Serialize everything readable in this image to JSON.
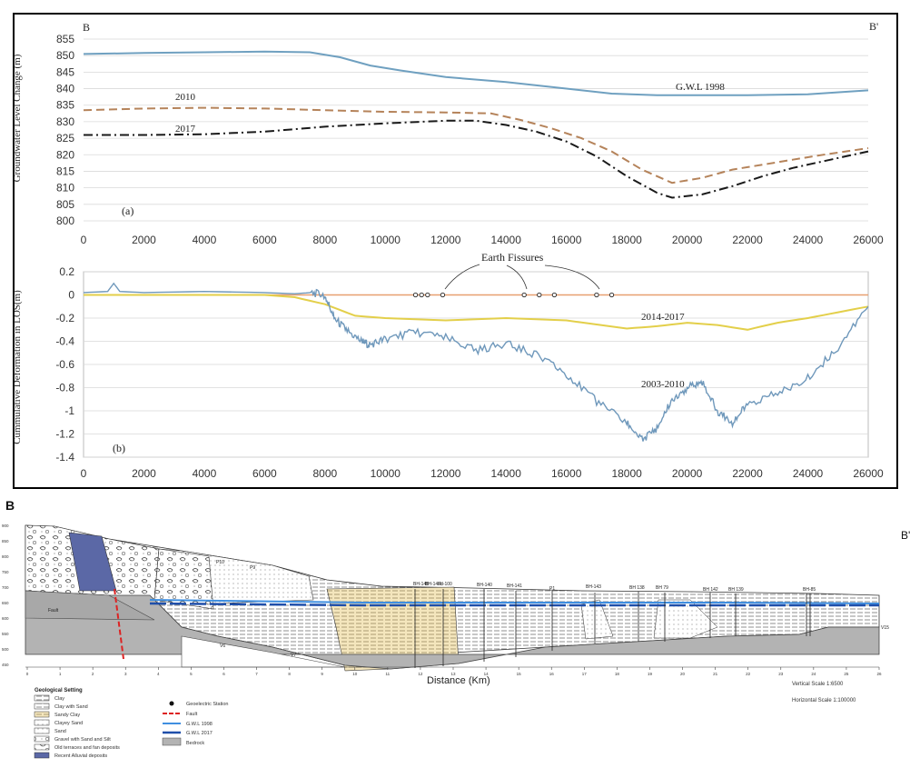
{
  "chart_data": [
    {
      "type": "line",
      "panel_label": "(a)",
      "corner_left": "B",
      "corner_right": "B'",
      "ylabel": "Groundwater Level Change (m)",
      "ylim": [
        800,
        855
      ],
      "yticks": [
        "800",
        "805",
        "810",
        "815",
        "820",
        "825",
        "830",
        "835",
        "840",
        "845",
        "850",
        "855"
      ],
      "xlim": [
        0,
        26000
      ],
      "xticks": [
        "0",
        "2000",
        "4000",
        "6000",
        "8000",
        "10000",
        "12000",
        "14000",
        "16000",
        "18000",
        "20000",
        "22000",
        "24000",
        "26000"
      ],
      "grid": true,
      "series": [
        {
          "name": "G.W.L 1998",
          "color": "#6fa0c0",
          "style": "solid",
          "x": [
            0,
            2000,
            4000,
            6000,
            7500,
            8500,
            9500,
            10500,
            12000,
            14000,
            16000,
            17500,
            19000,
            20500,
            22000,
            24000,
            26000
          ],
          "y": [
            850.5,
            850.8,
            851,
            851.2,
            851,
            849.5,
            847,
            845.5,
            843.5,
            842,
            840,
            838.5,
            838,
            838,
            838,
            838.3,
            839.5
          ]
        },
        {
          "name": "2010",
          "color": "#b5835a",
          "style": "dashed",
          "x": [
            0,
            2000,
            4000,
            6000,
            8000,
            10000,
            12000,
            13500,
            14500,
            15500,
            16500,
            17500,
            18500,
            19500,
            20500,
            21500,
            22500,
            23500,
            24500,
            26000
          ],
          "y": [
            833.5,
            834,
            834.2,
            834,
            833.5,
            833,
            832.8,
            832.5,
            830.5,
            828,
            825,
            821,
            815.5,
            811.5,
            813,
            815.5,
            817,
            818.5,
            820,
            822
          ]
        },
        {
          "name": "2017",
          "color": "#1a1a1a",
          "style": "dashdot",
          "x": [
            0,
            2000,
            4000,
            6000,
            8000,
            10000,
            12000,
            13000,
            14000,
            15000,
            16000,
            17000,
            18000,
            19000,
            19500,
            20500,
            21500,
            22500,
            23500,
            24500,
            26000
          ],
          "y": [
            826,
            826,
            826.2,
            827,
            828.5,
            829.5,
            830.3,
            830.3,
            829,
            827,
            824,
            819.5,
            813.5,
            808.5,
            807,
            808,
            810.5,
            813.5,
            816,
            818,
            821
          ]
        }
      ]
    },
    {
      "type": "line",
      "panel_label": "(b)",
      "ylabel": "Cummulative Deformation in LOS(m)",
      "ylim": [
        -1.4,
        0.2
      ],
      "yticks": [
        "0.2",
        "0",
        "-0.2",
        "-0.4",
        "-0.6",
        "-0.8",
        "-1",
        "-1.2",
        "-1.4"
      ],
      "xlim": [
        0,
        26000
      ],
      "xticks": [
        "0",
        "2000",
        "4000",
        "6000",
        "8000",
        "10000",
        "12000",
        "14000",
        "16000",
        "18000",
        "20000",
        "22000",
        "24000",
        "26000"
      ],
      "grid": true,
      "annotation": "Earth Fissures",
      "fissures_x": [
        11000,
        11200,
        11400,
        11900,
        14600,
        15100,
        15600,
        17000,
        17500
      ],
      "baseline": {
        "color": "#e8a070",
        "y": 0
      },
      "series": [
        {
          "name": "2014-2017",
          "color": "#e3cf4a",
          "x": [
            0,
            2000,
            4000,
            6000,
            7000,
            8000,
            9000,
            10000,
            12000,
            14000,
            16000,
            18000,
            19000,
            20000,
            21000,
            22000,
            23000,
            24000,
            25000,
            26000
          ],
          "y": [
            0,
            0,
            0,
            0,
            -0.02,
            -0.08,
            -0.18,
            -0.2,
            -0.22,
            -0.2,
            -0.22,
            -0.29,
            -0.27,
            -0.24,
            -0.26,
            -0.3,
            -0.24,
            -0.2,
            -0.15,
            -0.1
          ]
        },
        {
          "name": "2003-2010",
          "color": "#6f98bb",
          "x": [
            0,
            800,
            1000,
            1200,
            2000,
            4000,
            6000,
            7000,
            7500,
            8000,
            8300,
            8700,
            9200,
            9500,
            10000,
            11000,
            12000,
            13000,
            14000,
            15000,
            16000,
            17000,
            18000,
            18500,
            19000,
            19500,
            20000,
            20500,
            21000,
            21500,
            22000,
            23000,
            24000,
            25000,
            26000
          ],
          "y": [
            0.02,
            0.03,
            0.1,
            0.03,
            0.02,
            0.03,
            0.02,
            0.01,
            0.02,
            0.0,
            -0.2,
            -0.3,
            -0.4,
            -0.43,
            -0.38,
            -0.32,
            -0.37,
            -0.48,
            -0.42,
            -0.52,
            -0.68,
            -0.92,
            -1.1,
            -1.25,
            -1.15,
            -0.9,
            -0.8,
            -0.75,
            -1.0,
            -1.1,
            -0.95,
            -0.85,
            -0.72,
            -0.45,
            -0.1
          ]
        }
      ]
    }
  ],
  "cross_section": {
    "left_label": "B",
    "right_label": "B'",
    "xlabel": "Distance (Km)",
    "xticks": [
      "0",
      "1",
      "2",
      "3",
      "4",
      "5",
      "6",
      "7",
      "8",
      "9",
      "10",
      "11",
      "12",
      "13",
      "14",
      "15",
      "16",
      "17",
      "18",
      "19",
      "20",
      "21",
      "22",
      "23",
      "24",
      "25",
      "26"
    ],
    "yticks": [
      "900",
      "850",
      "800",
      "750",
      "700",
      "650",
      "600",
      "550",
      "500",
      "450"
    ],
    "labels": [
      "Fault",
      "V6",
      "V7",
      "V15",
      "BH-148",
      "BH-148b",
      "Fd-100",
      "BH-140",
      "BH-141",
      "P1",
      "BH-143",
      "BH 138",
      "BH 79",
      "BH 142",
      "BH 139",
      "BH-85",
      "P10",
      "P9"
    ],
    "vertical_scale": "Vertical Scale 1:6500",
    "horizontal_scale": "Horizontal Scale 1:100000"
  },
  "legend": {
    "title": "Geological Setting",
    "items": [
      "Clay",
      "Clay with Sand",
      "Sandy Clay",
      "Clayey Sand",
      "Sand",
      "Gravel with Sand and Silt",
      "Old terraces and fan deposits",
      "Recent Alluvial deposits"
    ],
    "symbols": [
      "Geoelectric Station",
      "Fault",
      "G.W.L 1998",
      "G.W.L 2017",
      "Bedrock"
    ],
    "colors": {
      "gwl1998": "#3f8fe0",
      "gwl2017": "#1f4faa",
      "fault": "#dd2222",
      "bedrock": "#b3b3b3",
      "recent": "#5b68a6"
    }
  }
}
